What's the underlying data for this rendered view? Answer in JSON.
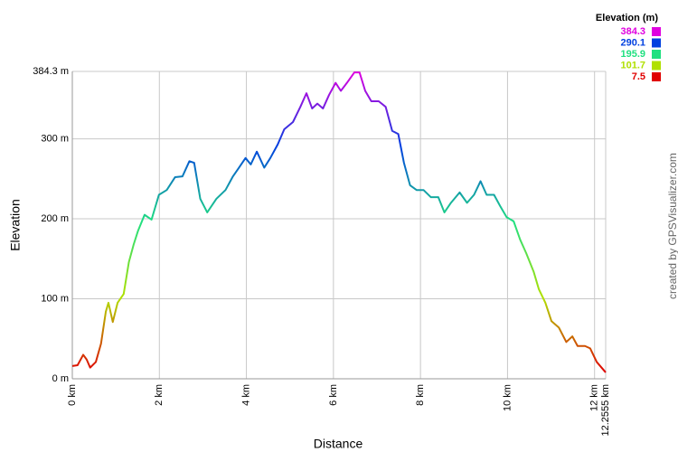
{
  "chart_data": {
    "type": "line",
    "x_label": "Distance",
    "y_label": "Elevation",
    "legend_title": "Elevation (m)",
    "credit": "created by GPSVisualizer.com",
    "color_scale": [
      {
        "value": 384.3,
        "color": "#e000e0"
      },
      {
        "value": 290.1,
        "color": "#0040e0"
      },
      {
        "value": 195.9,
        "color": "#20e080"
      },
      {
        "value": 101.7,
        "color": "#b0e000"
      },
      {
        "value": 7.5,
        "color": "#e00000"
      }
    ],
    "grid": true,
    "xlim": [
      0,
      12.2555
    ],
    "ylim": [
      0,
      384.3
    ],
    "xticks": [
      {
        "value": 0,
        "label": "0 km"
      },
      {
        "value": 2,
        "label": "2 km"
      },
      {
        "value": 4,
        "label": "4 km"
      },
      {
        "value": 6,
        "label": "6 km"
      },
      {
        "value": 8,
        "label": "8 km"
      },
      {
        "value": 10,
        "label": "10 km"
      },
      {
        "value": 12,
        "label": "12 km"
      },
      {
        "value": 12.2555,
        "label": "12.2555 km"
      }
    ],
    "yticks": [
      {
        "value": 0,
        "label": "0 m"
      },
      {
        "value": 100,
        "label": "100 m"
      },
      {
        "value": 200,
        "label": "200 m"
      },
      {
        "value": 300,
        "label": "300 m"
      },
      {
        "value": 384.3,
        "label": "384.3 m"
      }
    ],
    "x": [
      0,
      0.12,
      0.25,
      0.33,
      0.41,
      0.54,
      0.66,
      0.77,
      0.83,
      0.93,
      1.04,
      1.18,
      1.3,
      1.41,
      1.51,
      1.66,
      1.82,
      1.99,
      2.17,
      2.36,
      2.53,
      2.69,
      2.8,
      2.94,
      3.1,
      3.31,
      3.52,
      3.69,
      3.83,
      3.98,
      4.1,
      4.24,
      4.41,
      4.55,
      4.72,
      4.87,
      5.07,
      5.24,
      5.38,
      5.51,
      5.63,
      5.76,
      5.9,
      6.05,
      6.17,
      6.31,
      6.48,
      6.6,
      6.73,
      6.87,
      7.04,
      7.2,
      7.35,
      7.49,
      7.62,
      7.76,
      7.91,
      8.07,
      8.24,
      8.41,
      8.55,
      8.7,
      8.9,
      9.07,
      9.23,
      9.38,
      9.52,
      9.69,
      9.83,
      9.98,
      10.14,
      10.29,
      10.43,
      10.6,
      10.72,
      10.87,
      11.01,
      11.18,
      11.35,
      11.49,
      11.61,
      11.78,
      11.9,
      12.05,
      12.2555
    ],
    "values": [
      16,
      17,
      30,
      24,
      14,
      21,
      44,
      84,
      95,
      71,
      95,
      106,
      146,
      168,
      185,
      205,
      199,
      230,
      236,
      252,
      253,
      272,
      270,
      225,
      208,
      225,
      236,
      253,
      264,
      276,
      268,
      284,
      264,
      276,
      293,
      312,
      321,
      340,
      357,
      338,
      344,
      338,
      355,
      370,
      360,
      370,
      383,
      383,
      360,
      347,
      347,
      340,
      310,
      306,
      270,
      242,
      236,
      236,
      227,
      227,
      208,
      220,
      233,
      220,
      230,
      247,
      230,
      230,
      216,
      202,
      197,
      174,
      157,
      134,
      112,
      95,
      72,
      64,
      46,
      53,
      41,
      41,
      38,
      21,
      8
    ]
  }
}
